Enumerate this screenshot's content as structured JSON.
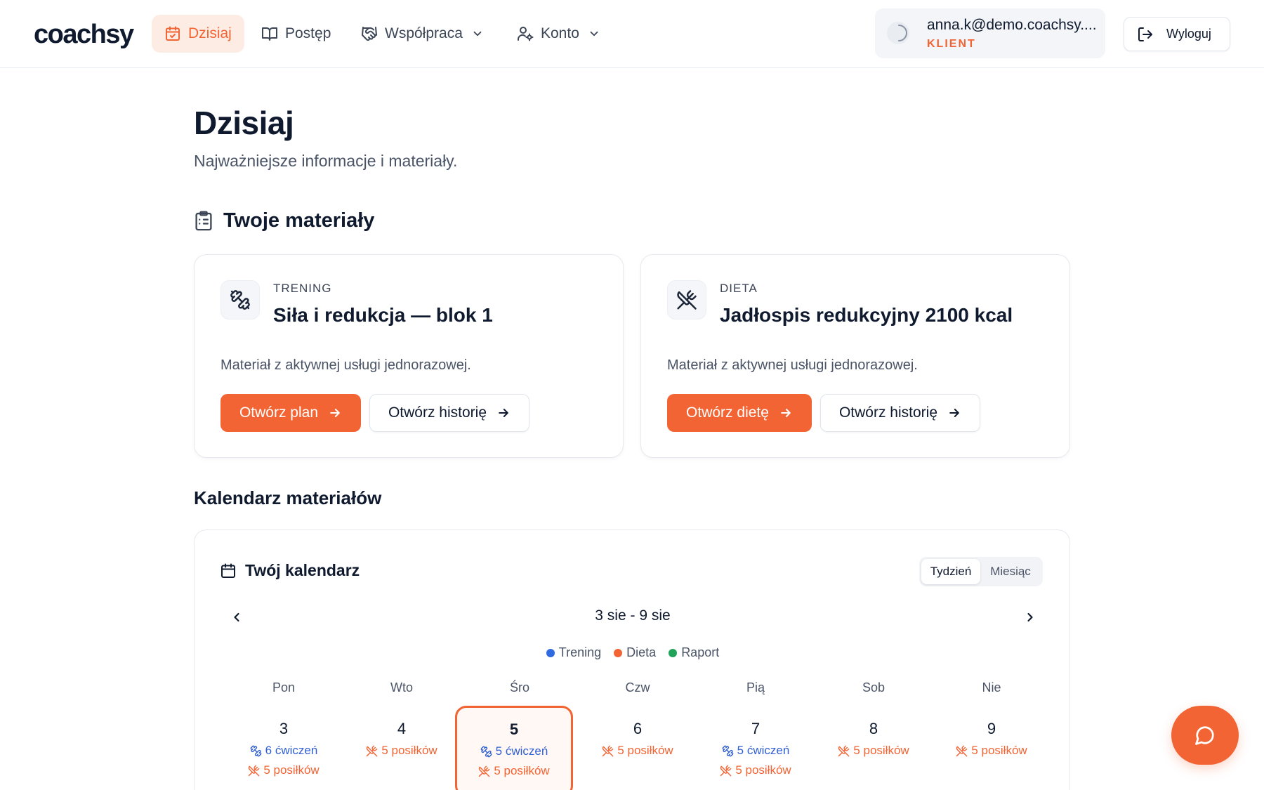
{
  "brand": {
    "logo": "coachsy",
    "accent": "#f26433"
  },
  "nav": {
    "items": [
      {
        "label": "Dzisiaj",
        "icon": "calendar-check-icon",
        "active": true
      },
      {
        "label": "Postęp",
        "icon": "book-open-icon"
      },
      {
        "label": "Współpraca",
        "icon": "handshake-icon",
        "dropdown": true
      },
      {
        "label": "Konto",
        "icon": "user-cog-icon",
        "dropdown": true
      }
    ]
  },
  "user": {
    "email": "anna.k@demo.coachsy....",
    "role": "KLIENT",
    "icon": "moon-icon"
  },
  "logout": {
    "label": "Wyloguj",
    "icon": "log-out-icon"
  },
  "page": {
    "title": "Dzisiaj",
    "subtitle": "Najważniejsze informacje i materiały."
  },
  "materials": {
    "heading": "Twoje materiały",
    "cards": [
      {
        "kicker": "TRENING",
        "title": "Siła i redukcja — blok 1",
        "description": "Materiał z aktywnej usługi jednorazowej.",
        "primary": "Otwórz plan",
        "secondary": "Otwórz historię",
        "icon": "dumbbell-icon"
      },
      {
        "kicker": "DIETA",
        "title": "Jadłospis redukcyjny 2100 kcal",
        "description": "Materiał z aktywnej usługi jednorazowej.",
        "primary": "Otwórz dietę",
        "secondary": "Otwórz historię",
        "icon": "utensils-crossed-icon"
      }
    ]
  },
  "calendar": {
    "section_title": "Kalendarz materiałów",
    "title": "Twój kalendarz",
    "view_options": [
      "Tydzień",
      "Miesiąc"
    ],
    "active_view": "Tydzień",
    "range": "3 sie - 9 sie",
    "legend": [
      {
        "label": "Trening",
        "color": "#2f6ae0"
      },
      {
        "label": "Dieta",
        "color": "#f26433"
      },
      {
        "label": "Raport",
        "color": "#22a35a"
      }
    ],
    "weekdays": [
      "Pon",
      "Wto",
      "Śro",
      "Czw",
      "Pią",
      "Sob",
      "Nie"
    ],
    "days": [
      {
        "num": "3",
        "training": "6 ćwiczeń",
        "diet": "5 posiłków"
      },
      {
        "num": "4",
        "diet": "5 posiłków"
      },
      {
        "num": "5",
        "training": "5 ćwiczeń",
        "diet": "5 posiłków",
        "today": true
      },
      {
        "num": "6",
        "diet": "5 posiłków"
      },
      {
        "num": "7",
        "training": "5 ćwiczeń",
        "diet": "5 posiłków"
      },
      {
        "num": "8",
        "diet": "5 posiłków"
      },
      {
        "num": "9",
        "diet": "5 posiłków"
      }
    ]
  },
  "chat": {
    "icon": "message-circle-icon"
  }
}
